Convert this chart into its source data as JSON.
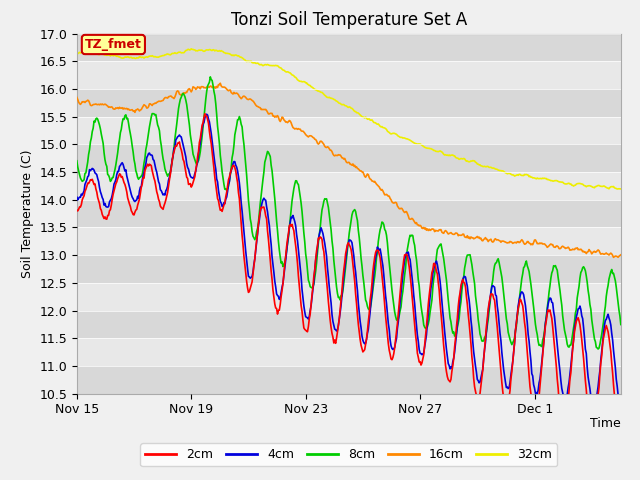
{
  "title": "Tonzi Soil Temperature Set A",
  "ylabel": "Soil Temperature (C)",
  "xlabel": "Time",
  "ylim": [
    10.5,
    17.0
  ],
  "yticks": [
    10.5,
    11.0,
    11.5,
    12.0,
    12.5,
    13.0,
    13.5,
    14.0,
    14.5,
    15.0,
    15.5,
    16.0,
    16.5,
    17.0
  ],
  "xtick_labels": [
    "Nov 15",
    "Nov 19",
    "Nov 23",
    "Nov 27",
    "Dec 1"
  ],
  "xtick_positions": [
    0,
    4,
    8,
    12,
    16
  ],
  "total_days": 19,
  "colors": {
    "2cm": "#ff0000",
    "4cm": "#0000dd",
    "8cm": "#00cc00",
    "16cm": "#ff8800",
    "32cm": "#eeee00"
  },
  "annotation_text": "TZ_fmet",
  "annotation_bg": "#ffff99",
  "annotation_border": "#cc0000",
  "line_width": 1.2,
  "fig_bg": "#f0f0f0",
  "plot_bg": "#e8e8e8"
}
